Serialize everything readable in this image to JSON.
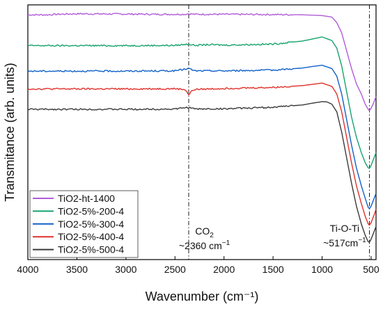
{
  "chart_data": {
    "type": "line",
    "xlabel": "Wavenumber (cm⁻¹)",
    "ylabel": "Transmitance (arb. units)",
    "xlim": [
      4000,
      450
    ],
    "x_axis_reversed": true,
    "xticks": [
      4000,
      3500,
      3000,
      2500,
      2000,
      1500,
      1000,
      500
    ],
    "y_tick_labels_shown": false,
    "grid": false,
    "legend_position": "bottom-left",
    "reference_lines": [
      {
        "x": 2360,
        "style": "dash-dot",
        "color": "#000000"
      },
      {
        "x": 517,
        "style": "dash-dot",
        "color": "#000000"
      }
    ],
    "annotations": [
      {
        "main": "CO",
        "sub": "2",
        "line2_prefix": "~2360 cm",
        "line2_sup": "−1",
        "x": 2200
      },
      {
        "main": "Ti-O-Ti",
        "line2_prefix": "~517cm",
        "line2_sup": "−1",
        "x": 770
      }
    ],
    "series": [
      {
        "name": "TiO2-ht-1400",
        "color": "#b05cd8",
        "x": [
          4000,
          3800,
          3700,
          3500,
          3000,
          2700,
          2400,
          2360,
          2300,
          2000,
          1500,
          1200,
          1000,
          900,
          850,
          800,
          750,
          700,
          650,
          600,
          560,
          530,
          517,
          500,
          480,
          460,
          450
        ],
        "y": [
          0.961,
          0.961,
          0.963,
          0.965,
          0.964,
          0.963,
          0.963,
          0.965,
          0.963,
          0.963,
          0.962,
          0.961,
          0.958,
          0.952,
          0.93,
          0.89,
          0.82,
          0.75,
          0.69,
          0.65,
          0.61,
          0.59,
          0.585,
          0.595,
          0.61,
          0.63,
          0.64
        ]
      },
      {
        "name": "TiO2-5%-200-4",
        "color": "#14a36c",
        "x": [
          4000,
          3500,
          3000,
          2500,
          2360,
          2300,
          2150,
          2000,
          1500,
          1200,
          1100,
          1000,
          900,
          850,
          800,
          750,
          700,
          650,
          600,
          560,
          530,
          517,
          500,
          480,
          460,
          450
        ],
        "y": [
          0.84,
          0.84,
          0.84,
          0.841,
          0.846,
          0.841,
          0.844,
          0.842,
          0.846,
          0.858,
          0.866,
          0.874,
          0.86,
          0.83,
          0.76,
          0.66,
          0.56,
          0.48,
          0.42,
          0.38,
          0.36,
          0.358,
          0.37,
          0.39,
          0.41,
          0.42
        ]
      },
      {
        "name": "TiO2-5%-300-4",
        "color": "#1060c8",
        "x": [
          4000,
          3500,
          3000,
          2500,
          2360,
          2300,
          2000,
          1500,
          1200,
          1100,
          1000,
          900,
          850,
          800,
          750,
          700,
          650,
          600,
          560,
          530,
          517,
          500,
          480,
          460,
          450
        ],
        "y": [
          0.74,
          0.74,
          0.74,
          0.741,
          0.75,
          0.741,
          0.741,
          0.744,
          0.752,
          0.758,
          0.763,
          0.75,
          0.72,
          0.65,
          0.55,
          0.45,
          0.36,
          0.29,
          0.24,
          0.205,
          0.2,
          0.21,
          0.23,
          0.25,
          0.26
        ]
      },
      {
        "name": "TiO2-5%-400-4",
        "color": "#e0302a",
        "x": [
          4000,
          3500,
          3000,
          2500,
          2400,
          2380,
          2360,
          2340,
          2300,
          2000,
          1500,
          1200,
          1100,
          1000,
          900,
          850,
          800,
          750,
          700,
          650,
          600,
          560,
          530,
          517,
          500,
          480,
          460,
          450
        ],
        "y": [
          0.67,
          0.67,
          0.67,
          0.671,
          0.668,
          0.66,
          0.645,
          0.658,
          0.668,
          0.672,
          0.676,
          0.683,
          0.688,
          0.693,
          0.68,
          0.65,
          0.58,
          0.48,
          0.38,
          0.29,
          0.22,
          0.17,
          0.14,
          0.135,
          0.145,
          0.165,
          0.185,
          0.2
        ]
      },
      {
        "name": "TiO2-5%-500-4",
        "color": "#3a3a3a",
        "x": [
          4000,
          3500,
          3000,
          2500,
          2360,
          2300,
          2000,
          1500,
          1200,
          1100,
          1000,
          950,
          900,
          850,
          800,
          750,
          700,
          650,
          600,
          560,
          530,
          517,
          500,
          480,
          460,
          450
        ],
        "y": [
          0.59,
          0.59,
          0.59,
          0.591,
          0.598,
          0.591,
          0.592,
          0.598,
          0.607,
          0.614,
          0.62,
          0.619,
          0.61,
          0.58,
          0.5,
          0.4,
          0.3,
          0.21,
          0.14,
          0.095,
          0.07,
          0.068,
          0.08,
          0.1,
          0.12,
          0.13
        ]
      }
    ]
  }
}
